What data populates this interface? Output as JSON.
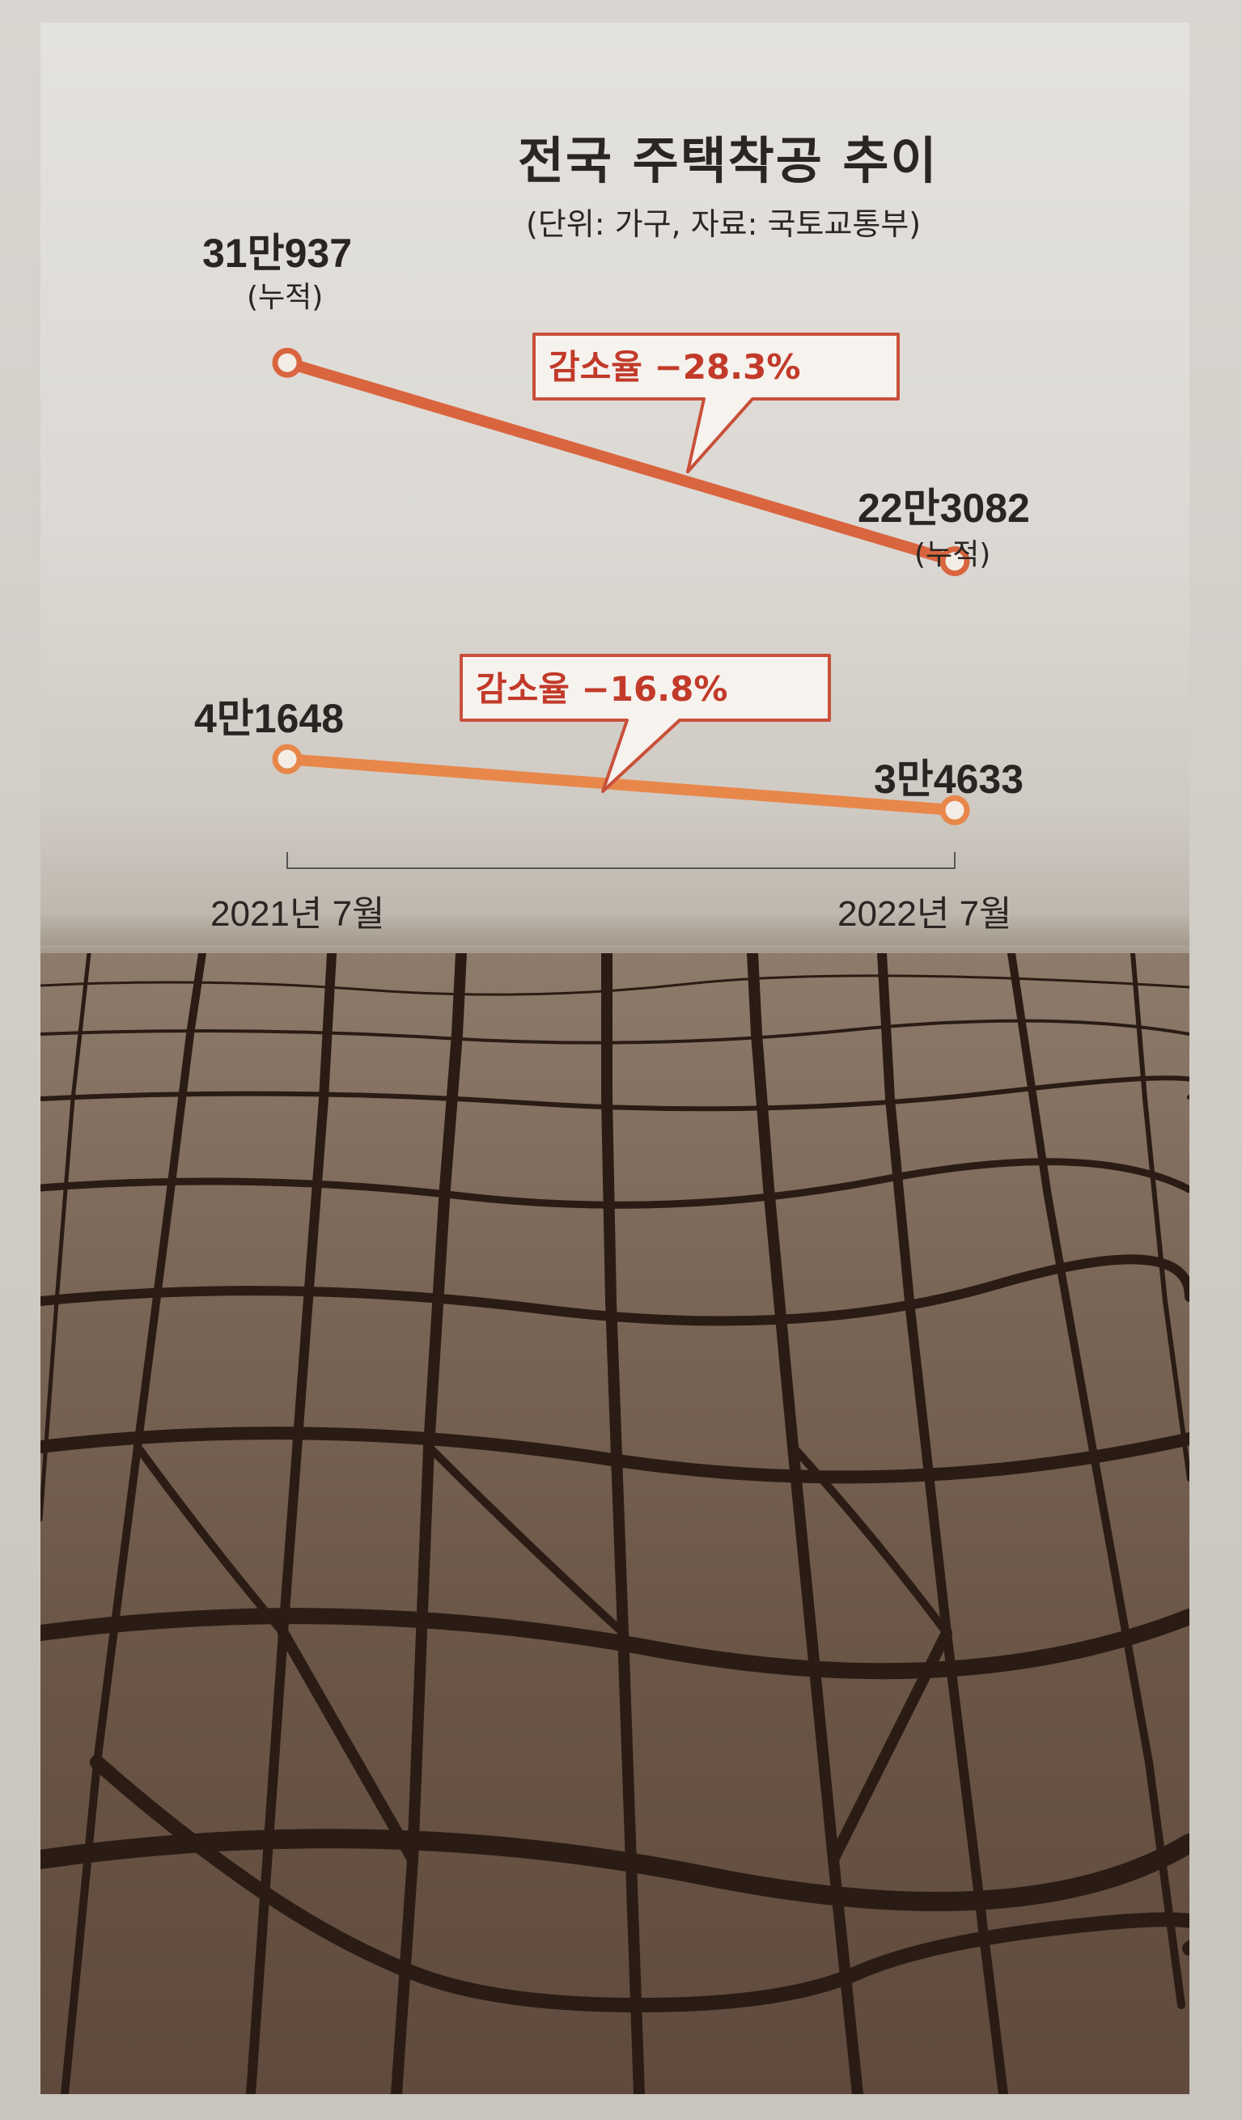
{
  "chart_data": {
    "type": "line",
    "title": "전국 주택착공 추이",
    "subtitle": "(단위: 가구, 자료: 국토교통부)",
    "categories": [
      "2021년 7월",
      "2022년 7월"
    ],
    "series": [
      {
        "values": [
          310937,
          223082
        ],
        "value_labels": [
          "31만937",
          "22만3082"
        ],
        "notes": [
          "(누적)",
          "(누적)"
        ],
        "callout": "감소율 −28.3%",
        "color": "#d9653f"
      },
      {
        "values": [
          41648,
          34633
        ],
        "value_labels": [
          "4만1648",
          "3만4633"
        ],
        "callout": "감소율 −16.8%",
        "color": "#e8874a"
      }
    ]
  },
  "colors": {
    "callout_border": "#c9503a",
    "callout_text": "#c23a2a",
    "text": "#2a2522"
  }
}
